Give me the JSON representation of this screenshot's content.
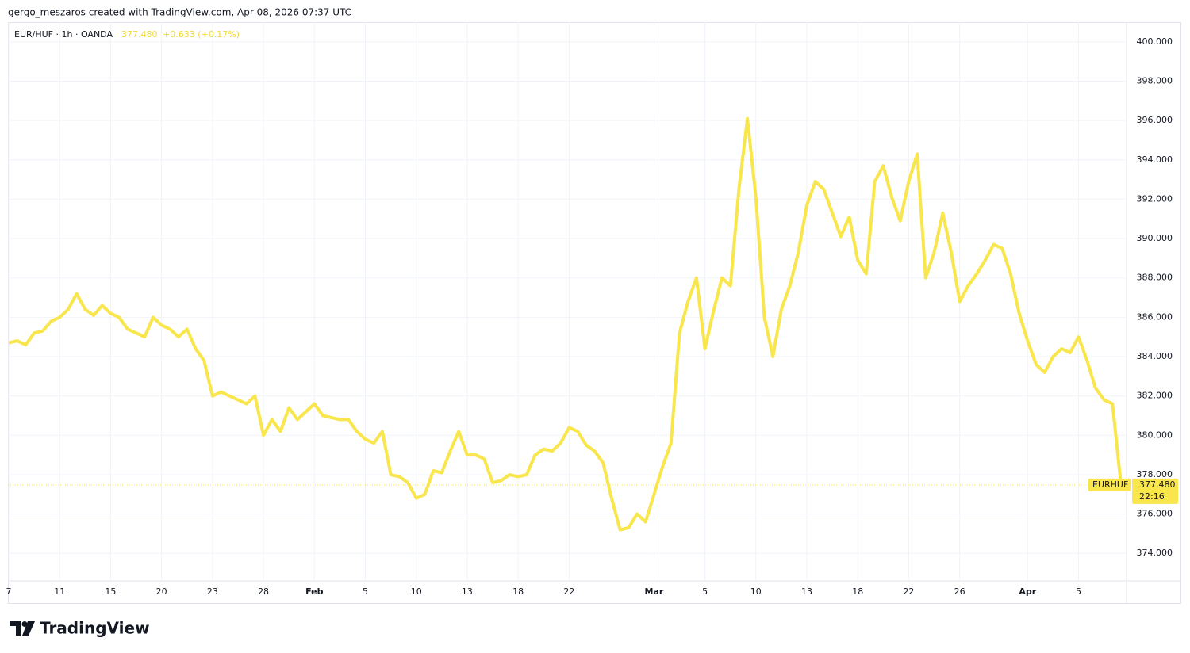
{
  "header": {
    "attribution": "gergo_meszaros created with TradingView.com, Apr 08, 2026 07:37 UTC"
  },
  "footer": {
    "logo": "TradingView"
  },
  "chart_data": {
    "type": "line",
    "symbol": "EUR/HUF · 1h · OANDA",
    "last_price": {
      "value": 377.48,
      "label": "377.480"
    },
    "change": "+0.633 (+0.17%)",
    "countdown": "22:16",
    "categories": [
      "7",
      null,
      null,
      null,
      null,
      null,
      "11",
      null,
      null,
      null,
      null,
      null,
      "15",
      null,
      null,
      null,
      null,
      null,
      "20",
      null,
      null,
      null,
      null,
      null,
      "23",
      null,
      null,
      null,
      null,
      null,
      "28",
      null,
      null,
      null,
      null,
      null,
      "Feb",
      null,
      null,
      null,
      null,
      null,
      "5",
      null,
      null,
      null,
      null,
      null,
      "10",
      null,
      null,
      null,
      null,
      null,
      "13",
      null,
      null,
      null,
      null,
      null,
      "18",
      null,
      null,
      null,
      null,
      null,
      "22",
      null,
      null,
      null,
      null,
      null,
      null,
      null,
      null,
      null,
      "Mar",
      null,
      null,
      null,
      null,
      null,
      "5",
      null,
      null,
      null,
      null,
      null,
      "10",
      null,
      null,
      null,
      null,
      null,
      "13",
      null,
      null,
      null,
      null,
      null,
      "18",
      null,
      null,
      null,
      null,
      null,
      "22",
      null,
      null,
      null,
      null,
      null,
      "26",
      null,
      null,
      null,
      null,
      null,
      null,
      null,
      "Apr",
      null,
      null,
      null,
      null,
      null,
      "5",
      null,
      null,
      null,
      null,
      null
    ],
    "series": [
      {
        "name": "EURHUF",
        "color": "#f9e64c",
        "values": [
          384.7,
          384.8,
          384.6,
          385.2,
          385.3,
          385.8,
          386.0,
          386.4,
          387.2,
          386.4,
          386.1,
          386.6,
          386.2,
          386.0,
          385.4,
          385.2,
          385.0,
          386.0,
          385.6,
          385.4,
          385.0,
          385.4,
          384.4,
          383.8,
          382.0,
          382.2,
          382.0,
          381.8,
          381.6,
          382.0,
          380.0,
          380.8,
          380.2,
          381.4,
          380.8,
          381.2,
          381.6,
          381.0,
          380.9,
          380.8,
          380.8,
          380.2,
          379.8,
          379.6,
          380.2,
          378.0,
          377.9,
          377.6,
          376.8,
          377.0,
          378.2,
          378.1,
          379.2,
          380.2,
          379.0,
          379.0,
          378.8,
          377.6,
          377.7,
          378.0,
          377.9,
          378.0,
          379.0,
          379.3,
          379.2,
          379.6,
          380.4,
          380.2,
          379.5,
          379.2,
          378.6,
          376.8,
          375.2,
          375.3,
          376.0,
          375.6,
          377.0,
          378.4,
          379.6,
          385.2,
          386.8,
          388.0,
          384.4,
          386.3,
          388.0,
          387.6,
          392.5,
          396.1,
          392.1,
          386.0,
          384.0,
          386.4,
          387.6,
          389.3,
          391.7,
          392.9,
          392.5,
          391.3,
          390.1,
          391.1,
          388.9,
          388.2,
          392.9,
          393.7,
          392.1,
          390.9,
          392.9,
          394.3,
          388.0,
          389.3,
          391.3,
          389.3,
          386.8,
          387.6,
          388.2,
          388.9,
          389.7,
          389.5,
          388.2,
          386.2,
          384.8,
          383.6,
          383.2,
          384.0,
          384.4,
          384.2,
          385.0,
          383.8,
          382.4,
          381.8,
          381.6,
          377.48
        ]
      }
    ],
    "ylim": [
      372.6,
      401
    ],
    "yticks": [
      {
        "value": 374,
        "label": "374.000"
      },
      {
        "value": 376,
        "label": "376.000"
      },
      {
        "value": 378,
        "label": "378.000"
      },
      {
        "value": 380,
        "label": "380.000"
      },
      {
        "value": 382,
        "label": "382.000"
      },
      {
        "value": 384,
        "label": "384.000"
      },
      {
        "value": 386,
        "label": "386.000"
      },
      {
        "value": 388,
        "label": "388.000"
      },
      {
        "value": 390,
        "label": "390.000"
      },
      {
        "value": 392,
        "label": "392.000"
      },
      {
        "value": 394,
        "label": "394.000"
      },
      {
        "value": 396,
        "label": "396.000"
      },
      {
        "value": 398,
        "label": "398.000"
      },
      {
        "value": 400,
        "label": "400.000"
      }
    ],
    "grid": true
  }
}
